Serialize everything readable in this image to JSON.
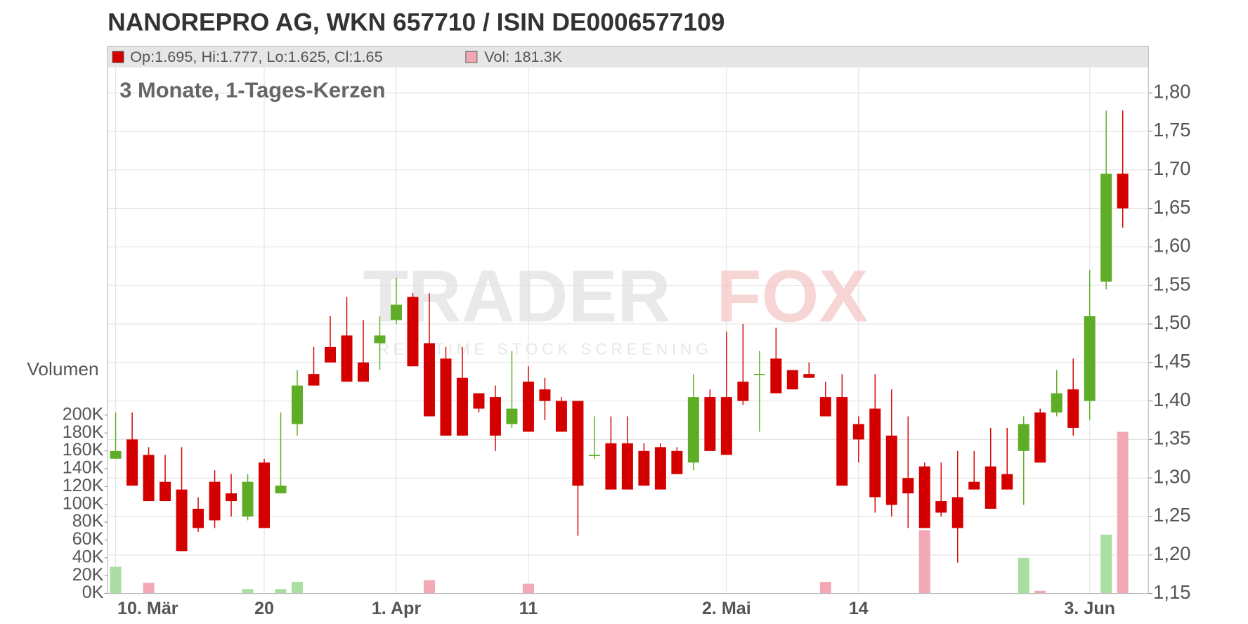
{
  "chart_data": {
    "type": "candlestick",
    "title": "NANOREPRO AG, WKN 657710 / ISIN DE0006577109",
    "subtitle": "3 Monate, 1-Tages-Kerzen",
    "ohlc_label": "Op:1.695, Hi:1.777, Lo:1.625, Cl:1.65",
    "volume_label": "Vol: 181.3K",
    "y2_axis_label": "Volumen",
    "watermark": {
      "brand": [
        "TRADER",
        "FOX"
      ],
      "tagline": "REALTIME STOCK SCREENING"
    },
    "categories": [
      "10. Mär",
      null,
      null,
      null,
      null,
      null,
      null,
      null,
      null,
      "20",
      null,
      null,
      null,
      null,
      null,
      null,
      null,
      "1. Apr",
      null,
      null,
      null,
      null,
      null,
      null,
      null,
      "11",
      null,
      null,
      null,
      null,
      null,
      null,
      null,
      null,
      null,
      null,
      null,
      "2. Mai",
      null,
      null,
      null,
      null,
      null,
      null,
      null,
      "14",
      null,
      null,
      null,
      null,
      null,
      null,
      null,
      null,
      null,
      null,
      null,
      null,
      null,
      "3. Jun",
      null,
      null
    ],
    "open": [
      1.325,
      1.35,
      1.33,
      1.295,
      1.285,
      1.26,
      1.295,
      1.28,
      1.25,
      1.32,
      1.28,
      1.37,
      1.435,
      1.47,
      1.485,
      1.45,
      1.475,
      1.505,
      1.535,
      1.475,
      1.455,
      1.43,
      1.41,
      1.405,
      1.37,
      1.425,
      1.415,
      1.4,
      1.4,
      1.33,
      1.345,
      1.345,
      1.335,
      1.34,
      1.335,
      1.32,
      1.405,
      1.405,
      1.425,
      1.435,
      1.455,
      1.44,
      1.435,
      1.405,
      1.405,
      1.37,
      1.39,
      1.355,
      1.3,
      1.315,
      1.27,
      1.275,
      1.295,
      1.315,
      1.305,
      1.335,
      1.385,
      1.385,
      1.415,
      1.4,
      1.555,
      1.695
    ],
    "high": [
      1.385,
      1.385,
      1.34,
      1.33,
      1.34,
      1.275,
      1.31,
      1.305,
      1.305,
      1.325,
      1.385,
      1.44,
      1.47,
      1.51,
      1.535,
      1.505,
      1.51,
      1.56,
      1.54,
      1.54,
      1.47,
      1.47,
      1.41,
      1.42,
      1.465,
      1.445,
      1.43,
      1.405,
      1.4,
      1.38,
      1.38,
      1.38,
      1.345,
      1.345,
      1.34,
      1.435,
      1.415,
      1.49,
      1.5,
      1.465,
      1.495,
      1.44,
      1.45,
      1.425,
      1.435,
      1.38,
      1.435,
      1.415,
      1.38,
      1.32,
      1.32,
      1.335,
      1.335,
      1.365,
      1.365,
      1.38,
      1.39,
      1.44,
      1.455,
      1.57,
      1.777,
      1.777
    ],
    "low": [
      1.325,
      1.29,
      1.27,
      1.27,
      1.205,
      1.23,
      1.235,
      1.25,
      1.245,
      1.235,
      1.28,
      1.355,
      1.42,
      1.45,
      1.425,
      1.425,
      1.44,
      1.5,
      1.445,
      1.38,
      1.355,
      1.355,
      1.385,
      1.335,
      1.365,
      1.36,
      1.375,
      1.36,
      1.225,
      1.325,
      1.285,
      1.285,
      1.29,
      1.285,
      1.305,
      1.31,
      1.335,
      1.33,
      1.395,
      1.36,
      1.41,
      1.415,
      1.43,
      1.38,
      1.29,
      1.32,
      1.255,
      1.25,
      1.235,
      1.235,
      1.25,
      1.19,
      1.285,
      1.26,
      1.285,
      1.265,
      1.32,
      1.38,
      1.355,
      1.375,
      1.545,
      1.625
    ],
    "close": [
      1.335,
      1.29,
      1.27,
      1.27,
      1.205,
      1.235,
      1.245,
      1.27,
      1.295,
      1.235,
      1.29,
      1.42,
      1.42,
      1.45,
      1.425,
      1.425,
      1.485,
      1.525,
      1.445,
      1.38,
      1.355,
      1.355,
      1.39,
      1.355,
      1.39,
      1.36,
      1.4,
      1.36,
      1.29,
      1.33,
      1.285,
      1.285,
      1.29,
      1.285,
      1.305,
      1.405,
      1.335,
      1.33,
      1.4,
      1.435,
      1.41,
      1.415,
      1.43,
      1.38,
      1.29,
      1.35,
      1.275,
      1.265,
      1.28,
      1.235,
      1.255,
      1.235,
      1.285,
      1.26,
      1.285,
      1.37,
      1.32,
      1.41,
      1.365,
      1.51,
      1.695,
      1.65
    ],
    "volume": [
      30000,
      0,
      12000,
      0,
      0,
      0,
      0,
      0,
      5000,
      0,
      5000,
      13000,
      0,
      0,
      0,
      0,
      0,
      0,
      0,
      15000,
      0,
      0,
      0,
      0,
      0,
      11000,
      0,
      0,
      0,
      0,
      0,
      0,
      0,
      0,
      0,
      0,
      0,
      0,
      0,
      0,
      0,
      0,
      0,
      13000,
      0,
      0,
      0,
      0,
      0,
      71000,
      0,
      0,
      0,
      0,
      0,
      40000,
      3000,
      0,
      0,
      0,
      66000,
      181300
    ],
    "up_color": "#5fad26",
    "down_color": "#d40000",
    "volume_up_color": "#a9dfa0",
    "volume_down_color": "#f2a9b5",
    "ylim": [
      1.15,
      1.833
    ],
    "yticks": [
      {
        "value": 1.15,
        "label": "1,15"
      },
      {
        "value": 1.2,
        "label": "1,20"
      },
      {
        "value": 1.25,
        "label": "1,25"
      },
      {
        "value": 1.3,
        "label": "1,30"
      },
      {
        "value": 1.35,
        "label": "1,35"
      },
      {
        "value": 1.4,
        "label": "1,40"
      },
      {
        "value": 1.45,
        "label": "1,45"
      },
      {
        "value": 1.5,
        "label": "1,50"
      },
      {
        "value": 1.55,
        "label": "1,55"
      },
      {
        "value": 1.6,
        "label": "1,60"
      },
      {
        "value": 1.65,
        "label": "1,65"
      },
      {
        "value": 1.7,
        "label": "1,70"
      },
      {
        "value": 1.75,
        "label": "1,75"
      },
      {
        "value": 1.8,
        "label": "1,80"
      }
    ],
    "y2lim": [
      0,
      590000
    ],
    "y2ticks": [
      {
        "value": 0,
        "label": "0K"
      },
      {
        "value": 20000,
        "label": "20K"
      },
      {
        "value": 40000,
        "label": "40K"
      },
      {
        "value": 60000,
        "label": "60K"
      },
      {
        "value": 80000,
        "label": "80K"
      },
      {
        "value": 100000,
        "label": "100K"
      },
      {
        "value": 120000,
        "label": "120K"
      },
      {
        "value": 140000,
        "label": "140K"
      },
      {
        "value": 160000,
        "label": "160K"
      },
      {
        "value": 180000,
        "label": "180K"
      },
      {
        "value": 200000,
        "label": "200K"
      }
    ],
    "grid": true
  }
}
